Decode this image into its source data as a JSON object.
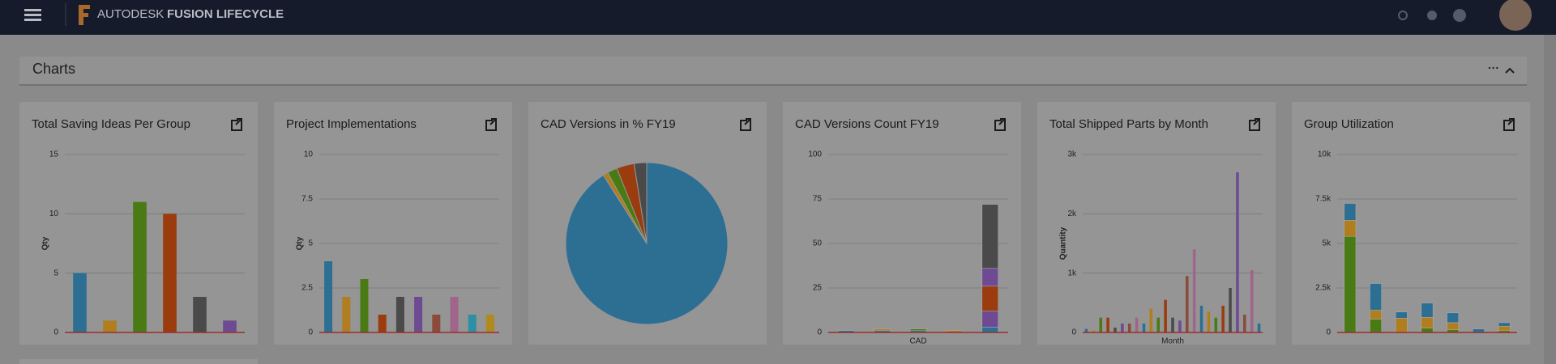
{
  "header": {
    "brand": "AUTODESK",
    "product": "FUSION LIFECYCLE"
  },
  "section": {
    "title": "Charts"
  },
  "chart_data": [
    {
      "type": "bar",
      "title": "Total Saving Ideas Per Group",
      "y_label": "Qty",
      "values": [
        5,
        1,
        11,
        10,
        3,
        1
      ],
      "colors": [
        "#2c6f93",
        "#b07d1f",
        "#4a7a14",
        "#9a3c0e",
        "#4a4a4a",
        "#6e4a93"
      ],
      "ylim": [
        0,
        15
      ],
      "yticks": [
        0,
        5,
        10,
        15
      ],
      "grid": true
    },
    {
      "type": "bar",
      "title": "Project Implementations",
      "y_label": "Qty",
      "values": [
        4,
        2,
        3,
        1,
        2,
        2,
        1,
        2,
        1,
        1
      ],
      "colors": [
        "#2c6f93",
        "#b07d1f",
        "#4a7a14",
        "#9a3c0e",
        "#4a4a4a",
        "#6e4a93",
        "#8c4a3a",
        "#a0658a",
        "#2c8fa5",
        "#b08a1f"
      ],
      "ylim": [
        0,
        10
      ],
      "yticks": [
        0,
        2.5,
        5,
        7.5,
        10
      ],
      "grid": true
    },
    {
      "type": "pie",
      "title": "CAD Versions in % FY19",
      "values": [
        91,
        1,
        2,
        3.5,
        2.5
      ],
      "colors": [
        "#2c6f93",
        "#b07d1f",
        "#4a7a14",
        "#9a3c0e",
        "#4a4a4a"
      ]
    },
    {
      "type": "stacked_bar",
      "title": "CAD Versions Count FY19",
      "x_label": "CAD",
      "series": [
        {
          "color": "#2c6f93",
          "values": [
            1,
            1,
            1,
            0,
            3
          ]
        },
        {
          "color": "#b07d1f",
          "values": [
            0,
            1,
            0,
            1,
            0
          ]
        },
        {
          "color": "#4a7a14",
          "values": [
            0,
            0,
            1,
            0,
            0
          ]
        },
        {
          "color": "#6e4a93",
          "values": [
            0,
            0,
            0,
            0,
            9
          ]
        },
        {
          "color": "#9a3c0e",
          "values": [
            0,
            0,
            0,
            0,
            14
          ]
        },
        {
          "color": "#6e4a93",
          "values": [
            0,
            0,
            0,
            0,
            10
          ]
        },
        {
          "color": "#4a4a4a",
          "values": [
            0,
            0,
            0,
            0,
            36
          ]
        }
      ],
      "ylim": [
        0,
        100
      ],
      "yticks": [
        0,
        25,
        50,
        75,
        100
      ],
      "grid": true
    },
    {
      "type": "bar",
      "title": "Total Shipped Parts by Month",
      "y_label": "Quantity",
      "x_label": "Month",
      "values": [
        60,
        30,
        250,
        250,
        80,
        150,
        150,
        250,
        150,
        400,
        250,
        550,
        250,
        200,
        950,
        1400,
        450,
        350,
        250,
        450,
        750,
        2700,
        300,
        1050,
        150
      ],
      "colors": [
        "#2c6f93",
        "#b07d1f",
        "#4a7a14",
        "#9a3c0e",
        "#4a4a4a",
        "#6e4a93",
        "#8c4a3a",
        "#a0658a"
      ],
      "ylim": [
        0,
        3000
      ],
      "yticks": [
        0,
        {
          "value": 1000,
          "label": "1k"
        },
        {
          "value": 2000,
          "label": "2k"
        },
        {
          "value": 3000,
          "label": "3k"
        }
      ],
      "grid": true
    },
    {
      "type": "stacked_bar",
      "title": "Group Utilization",
      "series": [
        {
          "color": "#4a7a14",
          "values": [
            5400,
            750,
            0,
            250,
            150,
            0,
            100
          ]
        },
        {
          "color": "#b07d1f",
          "values": [
            900,
            500,
            800,
            600,
            400,
            0,
            250
          ]
        },
        {
          "color": "#2c6f93",
          "values": [
            950,
            1500,
            350,
            800,
            550,
            200,
            200
          ]
        }
      ],
      "ylim": [
        0,
        10000
      ],
      "yticks": [
        0,
        {
          "value": 2500,
          "label": "2.5k"
        },
        {
          "value": 5000,
          "label": "5k"
        },
        {
          "value": 7500,
          "label": "7.5k"
        },
        {
          "value": 10000,
          "label": "10k"
        }
      ],
      "grid": true
    }
  ]
}
